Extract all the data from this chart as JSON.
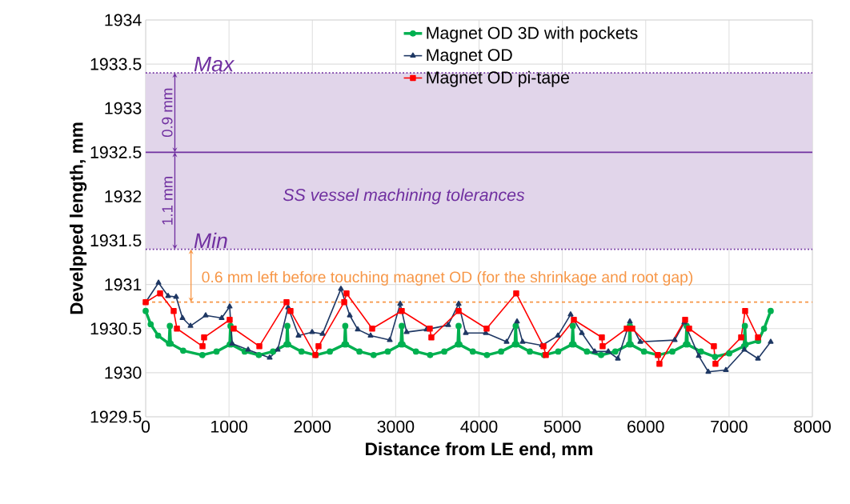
{
  "chart_data": {
    "type": "line",
    "xlabel": "Distance from LE end, mm",
    "ylabel": "Develpped length, mm",
    "xlim": [
      0,
      8000
    ],
    "xticks": [
      0,
      1000,
      2000,
      3000,
      4000,
      5000,
      6000,
      7000,
      8000
    ],
    "ylim": [
      1929.5,
      1934
    ],
    "yticks": [
      1929.5,
      1930,
      1930.5,
      1931,
      1931.5,
      1932,
      1932.5,
      1933,
      1933.5,
      1934
    ],
    "grid": true,
    "legend": "top",
    "series": [
      {
        "name": "Magnet OD 3D with pockets",
        "color": "#00b050",
        "marker": "circle",
        "x": [
          0,
          60,
          150,
          280,
          290,
          300,
          450,
          680,
          850,
          1008,
          1018,
          1028,
          1188,
          1358,
          1528,
          1690,
          1700,
          1710,
          1870,
          2040,
          2210,
          2385,
          2395,
          2405,
          2565,
          2735,
          2905,
          3063,
          3073,
          3083,
          3243,
          3413,
          3583,
          3745,
          3755,
          3765,
          3925,
          4095,
          4265,
          4430,
          4440,
          4450,
          4610,
          4780,
          4950,
          5115,
          5125,
          5135,
          5295,
          5465,
          5635,
          5800,
          5810,
          5820,
          5980,
          6150,
          6320,
          6482,
          6492,
          6502,
          6662,
          6832,
          7002,
          7180,
          7190,
          7200,
          7350,
          7420,
          7500
        ],
        "values": [
          1930.7,
          1930.55,
          1930.42,
          1930.33,
          1930.53,
          1930.33,
          1930.25,
          1930.2,
          1930.24,
          1930.32,
          1930.53,
          1930.32,
          1930.24,
          1930.2,
          1930.24,
          1930.32,
          1930.53,
          1930.32,
          1930.24,
          1930.2,
          1930.24,
          1930.32,
          1930.53,
          1930.32,
          1930.24,
          1930.2,
          1930.24,
          1930.32,
          1930.53,
          1930.32,
          1930.24,
          1930.2,
          1930.24,
          1930.32,
          1930.53,
          1930.32,
          1930.24,
          1930.2,
          1930.24,
          1930.32,
          1930.53,
          1930.32,
          1930.24,
          1930.2,
          1930.24,
          1930.32,
          1930.53,
          1930.32,
          1930.24,
          1930.2,
          1930.24,
          1930.32,
          1930.53,
          1930.32,
          1930.24,
          1930.2,
          1930.24,
          1930.32,
          1930.53,
          1930.32,
          1930.24,
          1930.18,
          1930.22,
          1930.3,
          1930.53,
          1930.32,
          1930.36,
          1930.5,
          1930.7
        ]
      },
      {
        "name": "Magnet OD",
        "color": "#1f3864",
        "marker": "triangle",
        "x": [
          0,
          154,
          269,
          365,
          442,
          538,
          720,
          912,
          1008,
          1037,
          1229,
          1488,
          1584,
          1709,
          1834,
          1997,
          2122,
          2343,
          2449,
          2545,
          2699,
          2929,
          3054,
          3131,
          3371,
          3630,
          3755,
          3841,
          4081,
          4331,
          4456,
          4523,
          4754,
          4946,
          5099,
          5234,
          5388,
          5551,
          5666,
          5810,
          5935,
          6348,
          6463,
          6636,
          6751,
          6962,
          7183,
          7347,
          7500
        ],
        "values": [
          1930.8,
          1931.02,
          1930.87,
          1930.86,
          1930.62,
          1930.53,
          1930.65,
          1930.62,
          1930.75,
          1930.33,
          1930.26,
          1930.17,
          1930.26,
          1930.74,
          1930.42,
          1930.46,
          1930.44,
          1930.95,
          1930.65,
          1930.49,
          1930.42,
          1930.37,
          1930.78,
          1930.46,
          1930.49,
          1930.54,
          1930.78,
          1930.45,
          1930.45,
          1930.35,
          1930.58,
          1930.35,
          1930.31,
          1930.42,
          1930.66,
          1930.45,
          1930.24,
          1930.24,
          1930.16,
          1930.58,
          1930.35,
          1930.37,
          1930.57,
          1930.19,
          1930.01,
          1930.03,
          1930.26,
          1930.16,
          1930.35
        ]
      },
      {
        "name": "Magnet OD pi-tape",
        "color": "#ff0000",
        "marker": "square",
        "x": [
          0,
          173,
          336,
          375,
          682,
          701,
          1008,
          1056,
          1364,
          1690,
          1738,
          2036,
          2074,
          2382,
          2410,
          2718,
          3073,
          3409,
          3428,
          3755,
          4091,
          4446,
          4773,
          4802,
          5138,
          5474,
          5483,
          5772,
          5839,
          6146,
          6165,
          6473,
          6521,
          6818,
          6837,
          7145,
          7193,
          7347
        ],
        "values": [
          1930.8,
          1930.9,
          1930.7,
          1930.5,
          1930.3,
          1930.4,
          1930.6,
          1930.5,
          1930.3,
          1930.8,
          1930.7,
          1930.2,
          1930.3,
          1930.8,
          1930.9,
          1930.5,
          1930.7,
          1930.5,
          1930.4,
          1930.7,
          1930.5,
          1930.9,
          1930.3,
          1930.2,
          1930.6,
          1930.4,
          1930.3,
          1930.5,
          1930.5,
          1930.2,
          1930.1,
          1930.6,
          1930.5,
          1930.3,
          1930.1,
          1930.4,
          1930.7,
          1930.4
        ]
      }
    ],
    "bands": [
      {
        "axis": "y",
        "from": 1931.4,
        "to": 1933.4,
        "label": "SS vessel machining tolerances",
        "color": "#e1d5ea"
      }
    ],
    "ref_lines": [
      {
        "axis": "y",
        "value": 1933.4,
        "label": "Max",
        "color": "#7030a0",
        "line_style": "dotted"
      },
      {
        "axis": "y",
        "value": 1932.5,
        "color": "#7030a0",
        "line_style": "solid"
      },
      {
        "axis": "y",
        "value": 1931.4,
        "label": "Min",
        "color": "#7030a0",
        "line_style": "dotted"
      },
      {
        "axis": "y",
        "value": 1930.8,
        "label": "0.6 mm left before touching magnet OD (for the shrinkage and root gap)",
        "color": "#f79646",
        "line_style": "dashed"
      }
    ],
    "annotations": [
      {
        "text": "0.9 mm",
        "x": 350,
        "y": 1933.4
      },
      {
        "text": "1.1 mm",
        "x": 350,
        "y": 1931.4
      }
    ]
  }
}
